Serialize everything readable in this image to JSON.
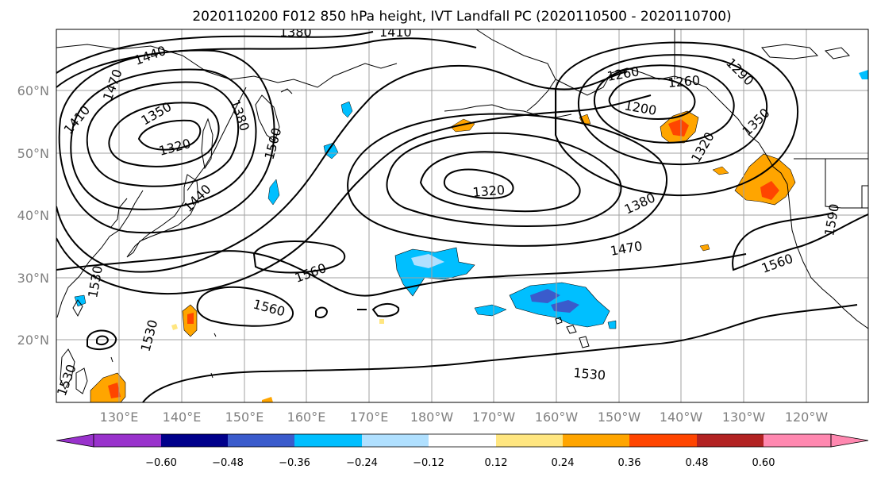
{
  "title": "2020110200 F012 850 hPa height, IVT Landfall PC (2020110500 - 2020110700)",
  "lat_labels": [
    "60°N",
    "50°N",
    "40°N",
    "30°N",
    "20°N"
  ],
  "lon_labels": [
    "130°E",
    "140°E",
    "150°E",
    "160°E",
    "170°E",
    "180°W",
    "170°W",
    "160°W",
    "150°W",
    "140°W",
    "130°W",
    "120°W"
  ],
  "contour_labels": [
    "1380",
    "1410",
    "1440",
    "1470",
    "1410",
    "1350",
    "1380",
    "1320",
    "1500",
    "1440",
    "1260",
    "1260",
    "1290",
    "1200",
    "1350",
    "1320",
    "1320",
    "1380",
    "1470",
    "1590",
    "1560",
    "1560",
    "1530",
    "1560",
    "1530",
    "1530",
    "1530"
  ],
  "colorbar": {
    "ticks": [
      "−0.60",
      "−0.48",
      "−0.36",
      "−0.24",
      "−0.12",
      "0.12",
      "0.24",
      "0.36",
      "0.48",
      "0.60"
    ],
    "colors": [
      "#9932cc",
      "#00008b",
      "#3a5bcc",
      "#00bfff",
      "#b0e0ff",
      "#ffffff",
      "#ffe680",
      "#ffa500",
      "#ff4500",
      "#b22222",
      "#ff88b0",
      "#ff88b0"
    ]
  },
  "colors": {
    "blue_fill": "#00bfff",
    "light_blue": "#b0e0ff",
    "dark_blue": "#3a5bcc",
    "orange": "#ffa500",
    "red": "#ff4500",
    "yellow": "#ffe680"
  }
}
